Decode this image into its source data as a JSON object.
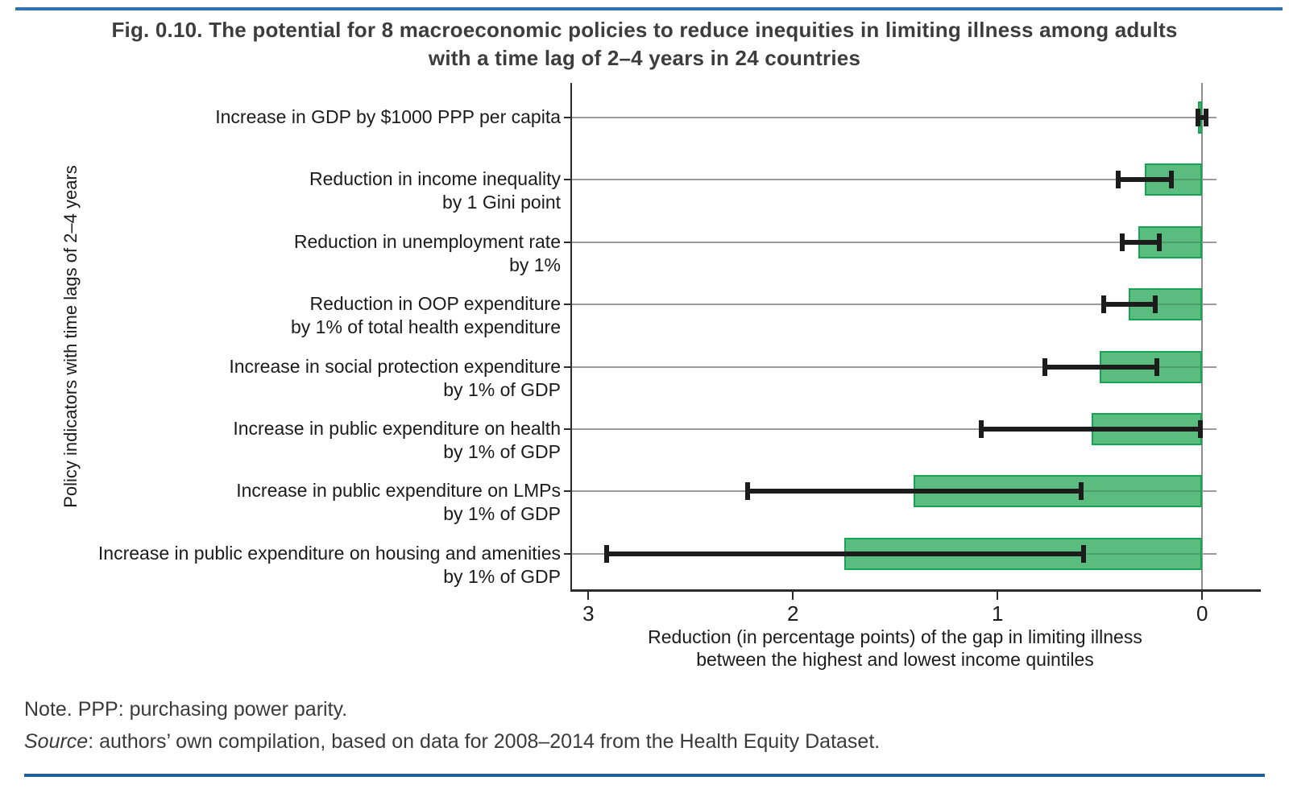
{
  "figure": {
    "title_line1": "Fig. 0.10. The potential for 8 macroeconomic policies to reduce inequities in limiting illness among adults",
    "title_line2": "with a time lag of 2–4 years in 24 countries",
    "note": "Note. PPP: purchasing power parity.",
    "source_label": "Source",
    "source_text": ": authors’ own compilation, based on data for 2008–2014 from the Health Equity Dataset."
  },
  "chart_data": {
    "type": "bar",
    "orientation": "horizontal",
    "title": "Fig. 0.10. The potential for 8 macroeconomic policies to reduce inequities in limiting illness among adults with a time lag of 2–4 years in 24 countries",
    "categories": [
      "Increase in GDP by $1000 PPP per capita",
      "Reduction in income inequality by 1 Gini point",
      "Reduction in unemployment rate by 1%",
      "Reduction in OOP expenditure by 1% of total health expenditure",
      "Increase in social protection expenditure by 1% of GDP",
      "Increase in public expenditure on health by 1% of GDP",
      "Increase in public expenditure on LMPs by 1% of GDP",
      "Increase in public expenditure on housing and amenities by 1% of GDP"
    ],
    "category_lines": [
      [
        "Increase in GDP by $1000 PPP per capita"
      ],
      [
        "Reduction in income inequality",
        "by 1 Gini point"
      ],
      [
        "Reduction in unemployment rate",
        "by 1%"
      ],
      [
        "Reduction in OOP expenditure",
        "by 1% of total health expenditure"
      ],
      [
        "Increase in social protection expenditure",
        "by 1% of GDP"
      ],
      [
        "Increase in public expenditure on health",
        "by 1% of GDP"
      ],
      [
        "Increase in public expenditure on LMPs",
        "by 1% of GDP"
      ],
      [
        "Increase in public expenditure on housing and amenities",
        "by 1% of GDP"
      ]
    ],
    "values": [
      0.02,
      0.28,
      0.31,
      0.36,
      0.5,
      0.54,
      1.41,
      1.75
    ],
    "ci_lower": [
      -0.02,
      0.15,
      0.21,
      0.23,
      0.22,
      0.01,
      0.59,
      0.58
    ],
    "ci_upper": [
      0.02,
      0.41,
      0.39,
      0.48,
      0.77,
      1.08,
      2.22,
      2.91
    ],
    "bar_anchor": 0,
    "x_ticks": [
      3,
      2,
      1,
      0
    ],
    "x_axis_reversed": true,
    "xlim": [
      3.08,
      -0.07
    ],
    "xlabel": "Reduction (in percentage points) of the gap in limiting illness between the highest and lowest income quintiles",
    "xlabel_line1": "Reduction (in percentage points) of the gap in limiting illness",
    "xlabel_line2": "between the highest and lowest income quintiles",
    "ylabel": "Policy indicators with time lags of 2–4 years",
    "grid": "horizontal category gridlines on, vertical zero line on",
    "legend": "none",
    "colors": {
      "bar_fill": "#5abc7e",
      "bar_border": "#17a351",
      "error_bar": "#1c1c1c",
      "gridline": "#9b9b9b",
      "axis": "#2b2b2b",
      "zero_line": "#8f8f8f",
      "top_rule": "#2b74b8",
      "bottom_rule": "#1e5f9f"
    }
  }
}
